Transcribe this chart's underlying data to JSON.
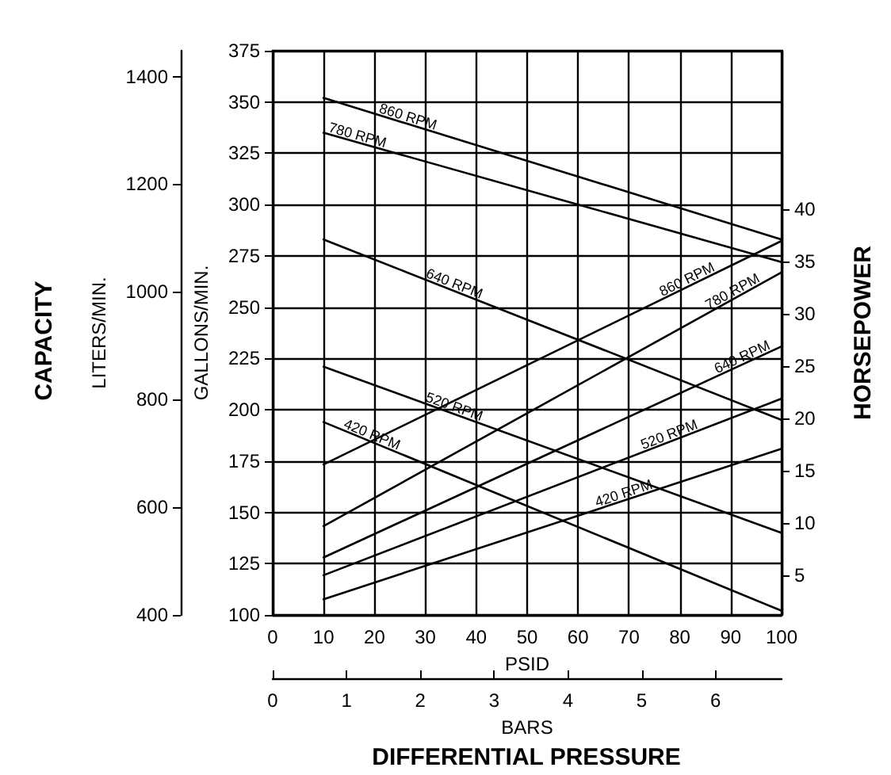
{
  "chart_data": {
    "type": "line",
    "xlabel": "PSID",
    "ylabel": "GALLONS/MIN.",
    "y2label": "HORSEPOWER",
    "y3label": "LITERS/MIN.",
    "x2label": "BARS",
    "annotations": [
      "CAPACITY",
      "DIFFERENTIAL PRESSURE"
    ],
    "x": [
      10,
      100
    ],
    "series": [
      {
        "name": "860 RPM",
        "color": "#000000",
        "values": [
          352,
          283
        ]
      },
      {
        "name": "780 RPM",
        "color": "#000000",
        "values": [
          335,
          272
        ]
      },
      {
        "name": "640 RPM",
        "color": "#000000",
        "values": [
          283,
          195
        ]
      },
      {
        "name": "520 RPM",
        "color": "#000000",
        "values": [
          221,
          140
        ]
      },
      {
        "name": "420 RPM",
        "color": "#000000",
        "values": [
          194,
          102
        ]
      },
      {
        "name": "860 RPM",
        "color": "#000000",
        "axis": "y2",
        "values": [
          15.6,
          37.0
        ]
      },
      {
        "name": "780 RPM",
        "color": "#000000",
        "axis": "y2",
        "values": [
          9.7,
          34.0
        ]
      },
      {
        "name": "640 RPM",
        "color": "#000000",
        "axis": "y2",
        "values": [
          6.7,
          26.9
        ]
      },
      {
        "name": "520 RPM",
        "color": "#000000",
        "axis": "y2",
        "values": [
          5.0,
          21.9
        ]
      },
      {
        "name": "420 RPM",
        "color": "#000000",
        "axis": "y2",
        "values": [
          2.7,
          17.1
        ]
      }
    ],
    "xlim": [
      0,
      100
    ],
    "xticks": [
      0,
      10,
      20,
      30,
      40,
      50,
      60,
      70,
      80,
      90,
      100
    ],
    "ylim": [
      100,
      375
    ],
    "yticks": [
      100,
      125,
      150,
      175,
      200,
      225,
      250,
      275,
      300,
      325,
      350,
      375
    ],
    "y2lim": [
      1.2,
      55.2
    ],
    "y2ticks": [
      5,
      10,
      15,
      20,
      25,
      30,
      35,
      40
    ],
    "y3lim": [
      400,
      1448
    ],
    "y3ticks": [
      400,
      600,
      800,
      1000,
      1200,
      1400
    ],
    "x2lim": [
      0,
      6.895
    ],
    "x2ticks": [
      0,
      1,
      2,
      3,
      4,
      5,
      6
    ],
    "grid": true,
    "legend": false,
    "marker": "none",
    "line_style": "solid"
  }
}
